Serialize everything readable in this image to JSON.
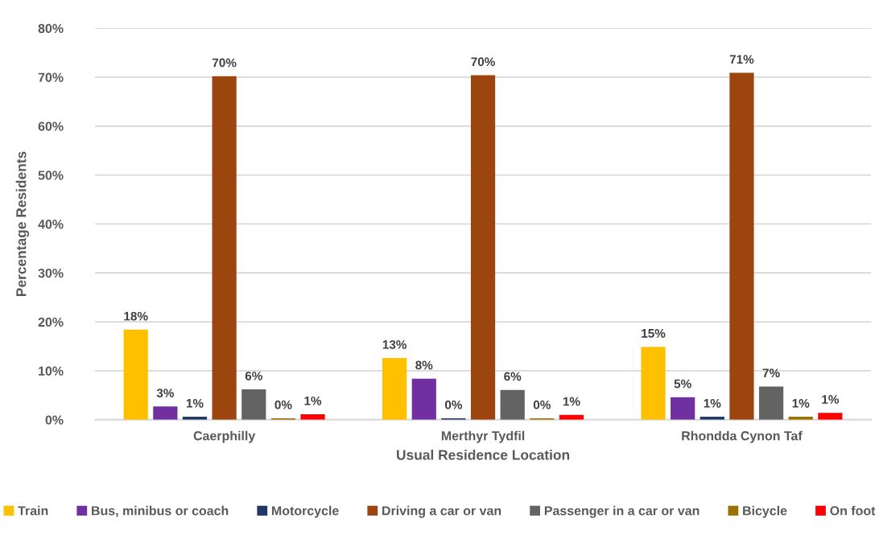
{
  "chart_data": {
    "type": "bar",
    "xlabel": "Usual Residence Location",
    "ylabel": "Percentage Residents",
    "categories": [
      "Caerphilly",
      "Merthyr Tydfil",
      "Rhondda Cynon Taf"
    ],
    "ylim": [
      0,
      80
    ],
    "yticks": [
      {
        "value": 0,
        "label": "0%"
      },
      {
        "value": 10,
        "label": "10%"
      },
      {
        "value": 20,
        "label": "20%"
      },
      {
        "value": 30,
        "label": "30%"
      },
      {
        "value": 40,
        "label": "40%"
      },
      {
        "value": 50,
        "label": "50%"
      },
      {
        "value": 60,
        "label": "60%"
      },
      {
        "value": 70,
        "label": "70%"
      },
      {
        "value": 80,
        "label": "80%"
      }
    ],
    "grid": "y",
    "legend": "bottom",
    "series": [
      {
        "name": "Train",
        "color": "#ffc000",
        "values": [
          18.4,
          12.6,
          14.9
        ],
        "value_labels": [
          "18%",
          "13%",
          "15%"
        ]
      },
      {
        "name": "Bus, minibus or coach",
        "color": "#7030a0",
        "values": [
          2.7,
          8.4,
          4.6
        ],
        "value_labels": [
          "3%",
          "8%",
          "5%"
        ]
      },
      {
        "name": "Motorcycle",
        "color": "#203864",
        "values": [
          0.6,
          0.3,
          0.6
        ],
        "value_labels": [
          "1%",
          "0%",
          "1%"
        ]
      },
      {
        "name": "Driving a car or van",
        "color": "#9c450e",
        "values": [
          70.2,
          70.4,
          70.9
        ],
        "value_labels": [
          "70%",
          "70%",
          "71%"
        ]
      },
      {
        "name": "Passenger in a car or van",
        "color": "#636363",
        "values": [
          6.2,
          6.1,
          6.8
        ],
        "value_labels": [
          "6%",
          "6%",
          "7%"
        ]
      },
      {
        "name": "Bicycle",
        "color": "#997300",
        "values": [
          0.3,
          0.3,
          0.6
        ],
        "value_labels": [
          "0%",
          "0%",
          "1%"
        ]
      },
      {
        "name": "On foot",
        "color": "#ff0000",
        "values": [
          1.1,
          1.0,
          1.4
        ],
        "value_labels": [
          "1%",
          "1%",
          "1%"
        ]
      }
    ]
  }
}
